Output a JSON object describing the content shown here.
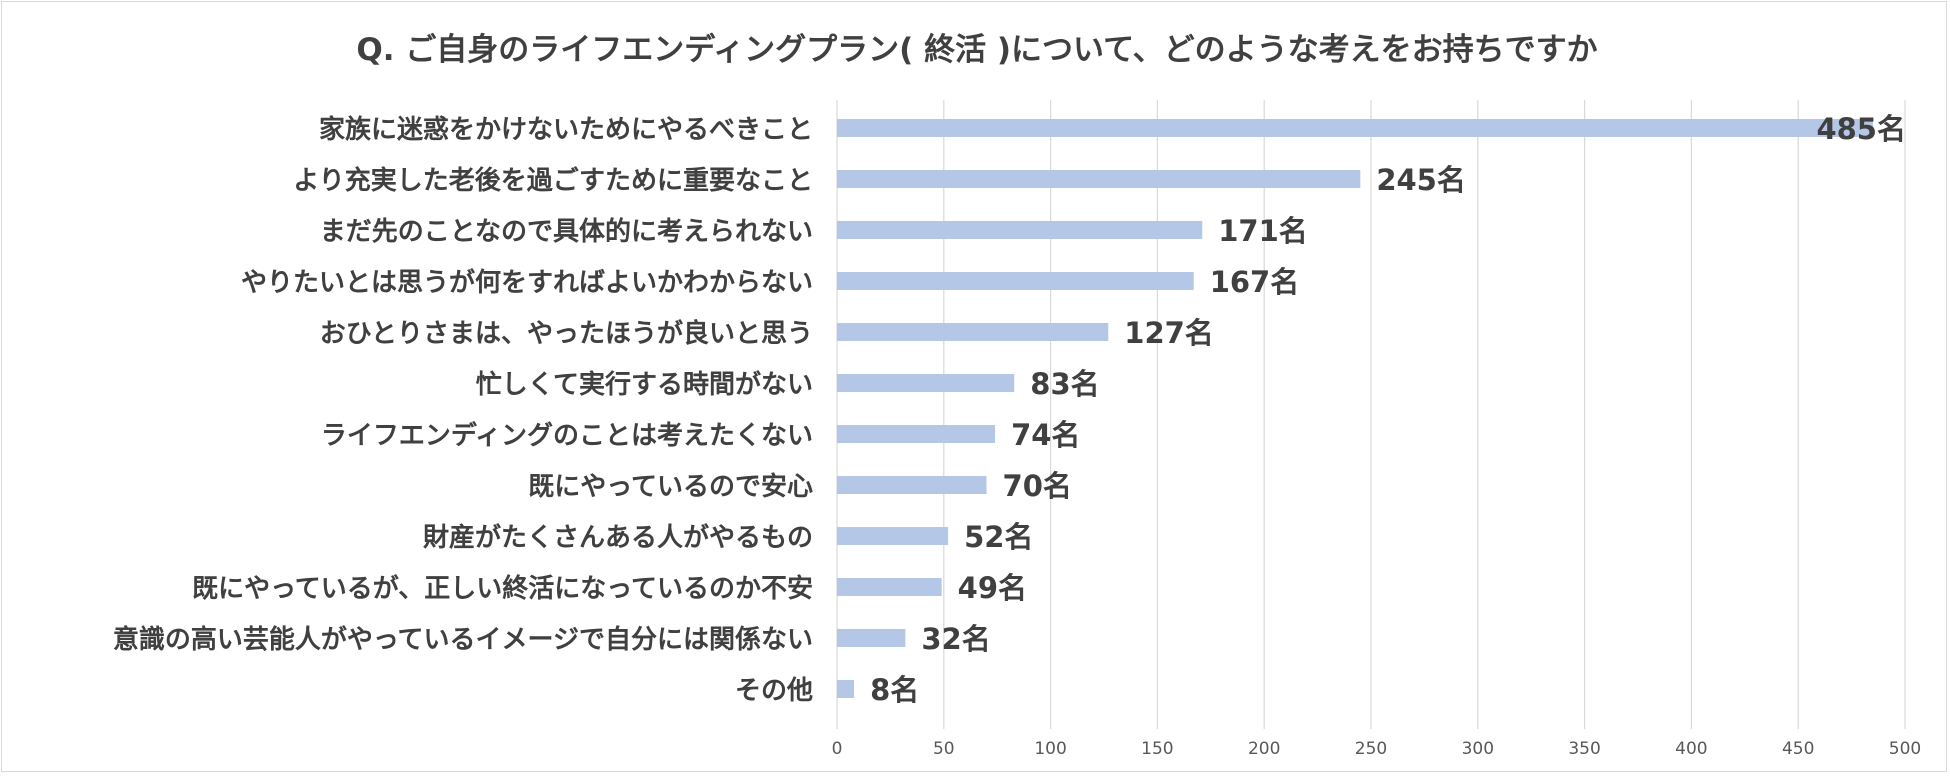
{
  "chart_data": {
    "type": "bar",
    "orientation": "horizontal",
    "title": "Q. ご自身のライフエンディングプラン( 終活 )について、どのような考えをお持ちですか",
    "categories": [
      "家族に迷惑をかけないためにやるべきこと",
      "より充実した老後を過ごすために重要なこと",
      "まだ先のことなので具体的に考えられない",
      "やりたいとは思うが何をすればよいかわからない",
      "おひとりさまは、やったほうが良いと思う",
      "忙しくて実行する時間がない",
      "ライフエンディングのことは考えたくない",
      "既にやっているので安心",
      "財産がたくさんある人がやるもの",
      "既にやっているが、正しい終活になっているのか不安",
      "意識の高い芸能人がやっているイメージで自分には関係ない",
      "その他"
    ],
    "values": [
      485,
      245,
      171,
      167,
      127,
      83,
      74,
      70,
      52,
      49,
      32,
      8
    ],
    "value_suffix": "名",
    "xlim": [
      0,
      500
    ],
    "xticks": [
      0,
      50,
      100,
      150,
      200,
      250,
      300,
      350,
      400,
      450,
      500
    ],
    "grid": true,
    "xlabel": "",
    "ylabel": "",
    "colors": {
      "bar": "#b4c7e7",
      "grid": "#d9d9d9",
      "label": "#404040",
      "tick": "#595959"
    }
  }
}
